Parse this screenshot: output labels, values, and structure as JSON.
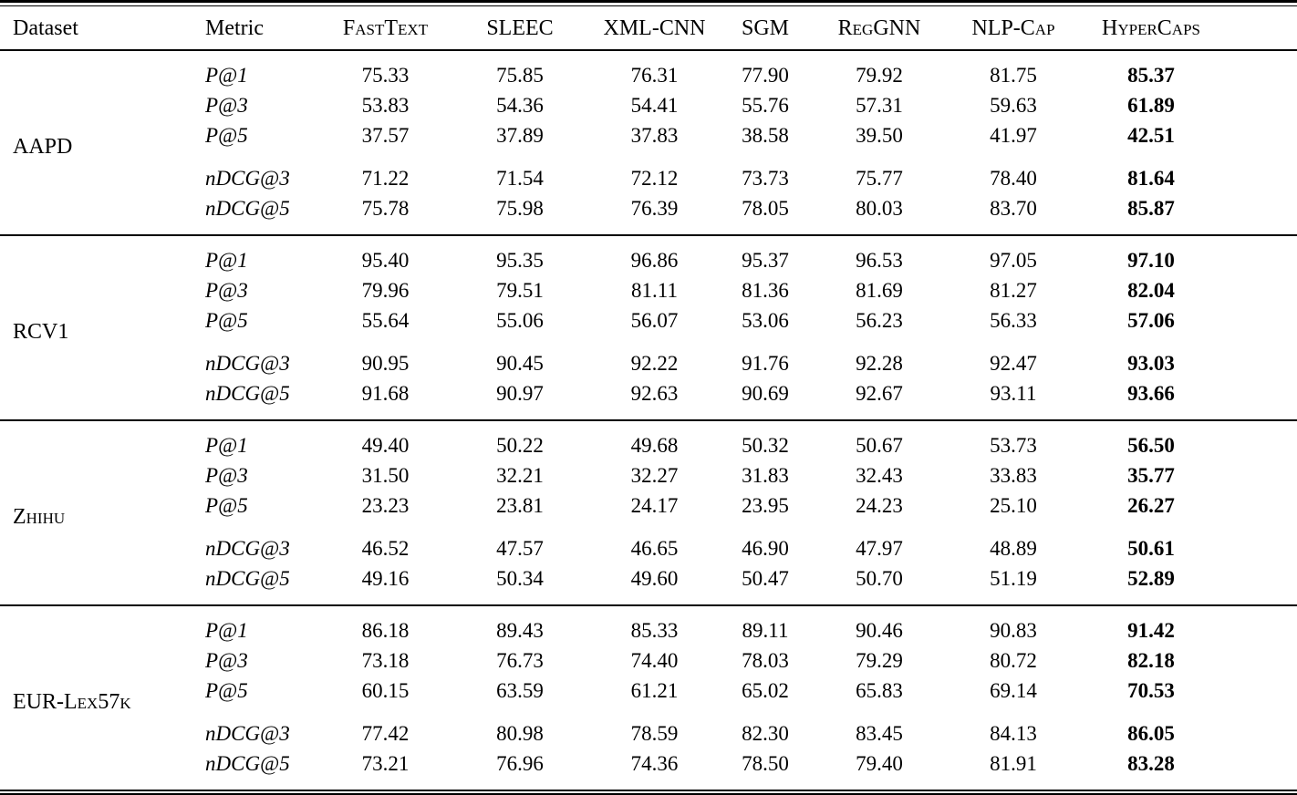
{
  "style": {
    "background": "#ffffff",
    "text_color": "#000000",
    "rule_color": "#000000",
    "best_column_bold": true,
    "metric_style": "italic"
  },
  "table": {
    "header": {
      "dataset": "Dataset",
      "metric": "Metric",
      "methods": [
        "FastText",
        "SLEEC",
        "XML-CNN",
        "SGM",
        "RegGNN",
        "NLP-Cap",
        "HyperCaps"
      ]
    },
    "groups": [
      {
        "dataset": "AAPD",
        "rows": [
          {
            "metric": "P@1",
            "values": [
              "75.33",
              "75.85",
              "76.31",
              "77.90",
              "79.92",
              "81.75",
              "85.37"
            ]
          },
          {
            "metric": "P@3",
            "values": [
              "53.83",
              "54.36",
              "54.41",
              "55.76",
              "57.31",
              "59.63",
              "61.89"
            ]
          },
          {
            "metric": "P@5",
            "values": [
              "37.57",
              "37.89",
              "37.83",
              "38.58",
              "39.50",
              "41.97",
              "42.51"
            ]
          },
          {
            "metric": "nDCG@3",
            "values": [
              "71.22",
              "71.54",
              "72.12",
              "73.73",
              "75.77",
              "78.40",
              "81.64"
            ]
          },
          {
            "metric": "nDCG@5",
            "values": [
              "75.78",
              "75.98",
              "76.39",
              "78.05",
              "80.03",
              "83.70",
              "85.87"
            ]
          }
        ]
      },
      {
        "dataset": "RCV1",
        "rows": [
          {
            "metric": "P@1",
            "values": [
              "95.40",
              "95.35",
              "96.86",
              "95.37",
              "96.53",
              "97.05",
              "97.10"
            ]
          },
          {
            "metric": "P@3",
            "values": [
              "79.96",
              "79.51",
              "81.11",
              "81.36",
              "81.69",
              "81.27",
              "82.04"
            ]
          },
          {
            "metric": "P@5",
            "values": [
              "55.64",
              "55.06",
              "56.07",
              "53.06",
              "56.23",
              "56.33",
              "57.06"
            ]
          },
          {
            "metric": "nDCG@3",
            "values": [
              "90.95",
              "90.45",
              "92.22",
              "91.76",
              "92.28",
              "92.47",
              "93.03"
            ]
          },
          {
            "metric": "nDCG@5",
            "values": [
              "91.68",
              "90.97",
              "92.63",
              "90.69",
              "92.67",
              "93.11",
              "93.66"
            ]
          }
        ]
      },
      {
        "dataset": "Zhihu",
        "rows": [
          {
            "metric": "P@1",
            "values": [
              "49.40",
              "50.22",
              "49.68",
              "50.32",
              "50.67",
              "53.73",
              "56.50"
            ]
          },
          {
            "metric": "P@3",
            "values": [
              "31.50",
              "32.21",
              "32.27",
              "31.83",
              "32.43",
              "33.83",
              "35.77"
            ]
          },
          {
            "metric": "P@5",
            "values": [
              "23.23",
              "23.81",
              "24.17",
              "23.95",
              "24.23",
              "25.10",
              "26.27"
            ]
          },
          {
            "metric": "nDCG@3",
            "values": [
              "46.52",
              "47.57",
              "46.65",
              "46.90",
              "47.97",
              "48.89",
              "50.61"
            ]
          },
          {
            "metric": "nDCG@5",
            "values": [
              "49.16",
              "50.34",
              "49.60",
              "50.47",
              "50.70",
              "51.19",
              "52.89"
            ]
          }
        ]
      },
      {
        "dataset": "EUR-Lex57k",
        "rows": [
          {
            "metric": "P@1",
            "values": [
              "86.18",
              "89.43",
              "85.33",
              "89.11",
              "90.46",
              "90.83",
              "91.42"
            ]
          },
          {
            "metric": "P@3",
            "values": [
              "73.18",
              "76.73",
              "74.40",
              "78.03",
              "79.29",
              "80.72",
              "82.18"
            ]
          },
          {
            "metric": "P@5",
            "values": [
              "60.15",
              "63.59",
              "61.21",
              "65.02",
              "65.83",
              "69.14",
              "70.53"
            ]
          },
          {
            "metric": "nDCG@3",
            "values": [
              "77.42",
              "80.98",
              "78.59",
              "82.30",
              "83.45",
              "84.13",
              "86.05"
            ]
          },
          {
            "metric": "nDCG@5",
            "values": [
              "73.21",
              "76.96",
              "74.36",
              "78.50",
              "79.40",
              "81.91",
              "83.28"
            ]
          }
        ]
      }
    ]
  }
}
